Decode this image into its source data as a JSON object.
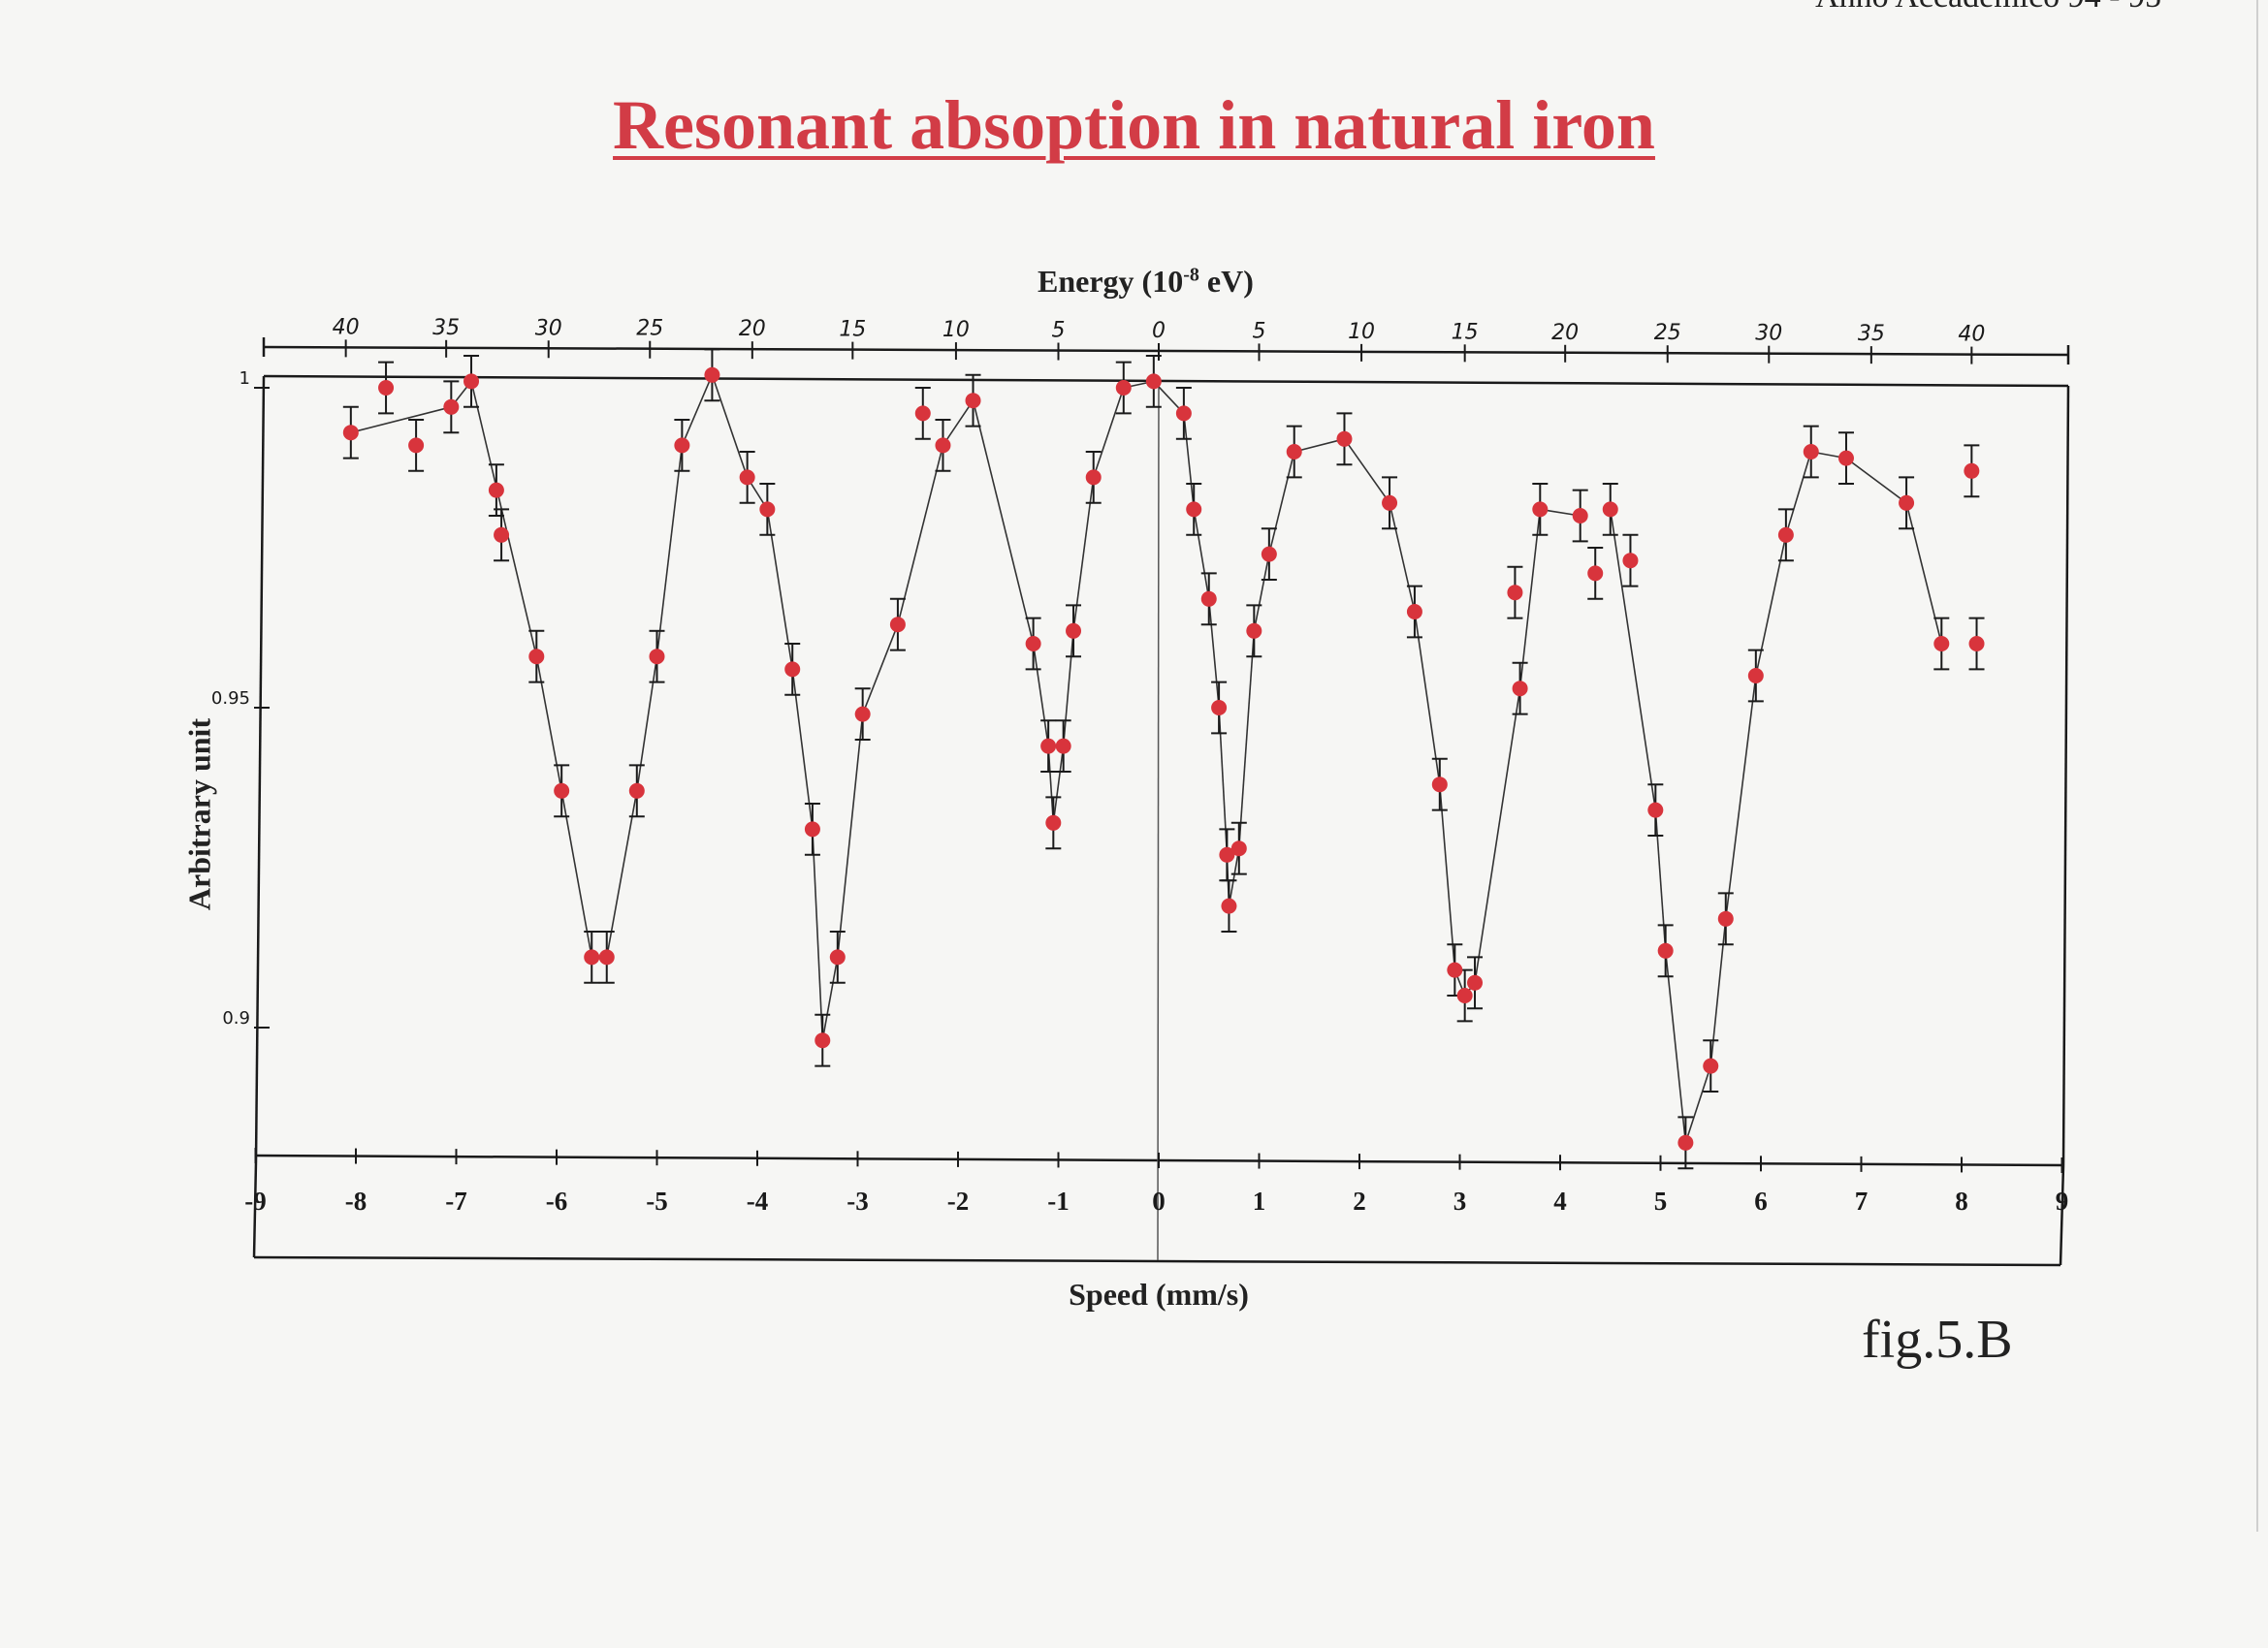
{
  "header": {
    "title": "Resonant absoption in natural iron",
    "corner_fragment": "Anno Accademico 94 - 95",
    "figure_label": "fig.5.B"
  },
  "colors": {
    "title": "#d23c46",
    "points": "#d8343c",
    "ink": "#1a1a1a",
    "background": "#f6f6f4"
  },
  "chart_data": {
    "type": "scatter",
    "title": "Resonant absoption in natural iron",
    "xlabel": "Speed (mm/s)",
    "ylabel": "Arbitrary unit",
    "top_xlabel_text": "Energy (10",
    "top_xlabel_sup": "-8",
    "top_xlabel_tail": " eV)",
    "xlim": [
      -9,
      9
    ],
    "ylim": [
      0.88,
      1.0
    ],
    "x_ticks": [
      -9,
      -8,
      -7,
      -6,
      -5,
      -4,
      -3,
      -2,
      -1,
      0,
      1,
      2,
      3,
      4,
      5,
      6,
      7,
      8,
      9
    ],
    "y_ticks": [
      {
        "value": 1.0,
        "label": "1"
      },
      {
        "value": 0.95,
        "label": "0.95"
      },
      {
        "value": 0.9,
        "label": "0.9"
      }
    ],
    "top_ticks": [
      {
        "x": -8.1,
        "label": "40"
      },
      {
        "x": -7.1,
        "label": "35"
      },
      {
        "x": -6.08,
        "label": "30"
      },
      {
        "x": -5.07,
        "label": "25"
      },
      {
        "x": -4.05,
        "label": "20"
      },
      {
        "x": -3.05,
        "label": "15"
      },
      {
        "x": -2.02,
        "label": "10"
      },
      {
        "x": -1.0,
        "label": "5"
      },
      {
        "x": 0.0,
        "label": "0"
      },
      {
        "x": 1.0,
        "label": "5"
      },
      {
        "x": 2.02,
        "label": "10"
      },
      {
        "x": 3.05,
        "label": "15"
      },
      {
        "x": 4.05,
        "label": "20"
      },
      {
        "x": 5.07,
        "label": "25"
      },
      {
        "x": 6.08,
        "label": "30"
      },
      {
        "x": 7.1,
        "label": "35"
      },
      {
        "x": 8.1,
        "label": "40"
      }
    ],
    "error_bar": 0.004,
    "grid": false,
    "points": [
      {
        "x": -8.05,
        "y": 0.993
      },
      {
        "x": -7.7,
        "y": 1.0
      },
      {
        "x": -7.4,
        "y": 0.991
      },
      {
        "x": -7.05,
        "y": 0.997
      },
      {
        "x": -6.85,
        "y": 1.001
      },
      {
        "x": -6.6,
        "y": 0.984
      },
      {
        "x": -6.55,
        "y": 0.977
      },
      {
        "x": -6.2,
        "y": 0.958
      },
      {
        "x": -5.95,
        "y": 0.937
      },
      {
        "x": -5.65,
        "y": 0.911
      },
      {
        "x": -5.5,
        "y": 0.911
      },
      {
        "x": -5.2,
        "y": 0.937
      },
      {
        "x": -5.0,
        "y": 0.958
      },
      {
        "x": -4.75,
        "y": 0.991
      },
      {
        "x": -4.45,
        "y": 1.002
      },
      {
        "x": -4.1,
        "y": 0.986
      },
      {
        "x": -3.9,
        "y": 0.981
      },
      {
        "x": -3.65,
        "y": 0.956
      },
      {
        "x": -3.45,
        "y": 0.931
      },
      {
        "x": -3.35,
        "y": 0.898
      },
      {
        "x": -3.2,
        "y": 0.911
      },
      {
        "x": -2.95,
        "y": 0.949
      },
      {
        "x": -2.6,
        "y": 0.963
      },
      {
        "x": -2.35,
        "y": 0.996
      },
      {
        "x": -2.15,
        "y": 0.991
      },
      {
        "x": -1.85,
        "y": 0.998
      },
      {
        "x": -1.25,
        "y": 0.96
      },
      {
        "x": -1.1,
        "y": 0.944
      },
      {
        "x": -1.05,
        "y": 0.932
      },
      {
        "x": -0.95,
        "y": 0.944
      },
      {
        "x": -0.85,
        "y": 0.962
      },
      {
        "x": -0.65,
        "y": 0.986
      },
      {
        "x": -0.35,
        "y": 1.0
      },
      {
        "x": -0.05,
        "y": 1.001
      },
      {
        "x": 0.25,
        "y": 0.996
      },
      {
        "x": 0.35,
        "y": 0.981
      },
      {
        "x": 0.5,
        "y": 0.967
      },
      {
        "x": 0.6,
        "y": 0.95
      },
      {
        "x": 0.68,
        "y": 0.927
      },
      {
        "x": 0.7,
        "y": 0.919
      },
      {
        "x": 0.8,
        "y": 0.928
      },
      {
        "x": 0.95,
        "y": 0.962
      },
      {
        "x": 1.1,
        "y": 0.974
      },
      {
        "x": 1.35,
        "y": 0.99
      },
      {
        "x": 1.85,
        "y": 0.992
      },
      {
        "x": 2.3,
        "y": 0.982
      },
      {
        "x": 2.55,
        "y": 0.965
      },
      {
        "x": 2.8,
        "y": 0.938
      },
      {
        "x": 2.95,
        "y": 0.909
      },
      {
        "x": 3.05,
        "y": 0.905
      },
      {
        "x": 3.15,
        "y": 0.907
      },
      {
        "x": 3.55,
        "y": 0.968
      },
      {
        "x": 3.6,
        "y": 0.953
      },
      {
        "x": 3.8,
        "y": 0.981
      },
      {
        "x": 4.2,
        "y": 0.98
      },
      {
        "x": 4.35,
        "y": 0.971
      },
      {
        "x": 4.5,
        "y": 0.981
      },
      {
        "x": 4.7,
        "y": 0.973
      },
      {
        "x": 4.95,
        "y": 0.934
      },
      {
        "x": 5.05,
        "y": 0.912
      },
      {
        "x": 5.25,
        "y": 0.882
      },
      {
        "x": 5.5,
        "y": 0.894
      },
      {
        "x": 5.65,
        "y": 0.917
      },
      {
        "x": 5.95,
        "y": 0.955
      },
      {
        "x": 6.25,
        "y": 0.977
      },
      {
        "x": 6.5,
        "y": 0.99
      },
      {
        "x": 6.85,
        "y": 0.989
      },
      {
        "x": 7.45,
        "y": 0.982
      },
      {
        "x": 7.8,
        "y": 0.96
      },
      {
        "x": 8.15,
        "y": 0.96
      },
      {
        "x": 8.1,
        "y": 0.987
      }
    ],
    "connected_segments": [
      [
        0,
        3
      ],
      [
        3,
        4
      ],
      [
        4,
        7
      ],
      [
        7,
        8
      ],
      [
        8,
        9
      ],
      [
        9,
        10
      ],
      [
        10,
        11
      ],
      [
        11,
        12
      ],
      [
        12,
        13
      ],
      [
        13,
        14
      ],
      [
        14,
        15
      ],
      [
        15,
        16
      ],
      [
        16,
        17
      ],
      [
        17,
        18
      ],
      [
        18,
        19
      ],
      [
        19,
        20
      ],
      [
        20,
        21
      ],
      [
        21,
        22
      ],
      [
        22,
        24
      ],
      [
        24,
        25
      ],
      [
        25,
        26
      ],
      [
        26,
        27
      ],
      [
        27,
        28
      ],
      [
        28,
        29
      ],
      [
        29,
        30
      ],
      [
        30,
        31
      ],
      [
        31,
        32
      ],
      [
        32,
        33
      ],
      [
        33,
        34
      ],
      [
        34,
        35
      ],
      [
        35,
        36
      ],
      [
        36,
        37
      ],
      [
        37,
        38
      ],
      [
        38,
        39
      ],
      [
        39,
        40
      ],
      [
        40,
        41
      ],
      [
        41,
        42
      ],
      [
        42,
        43
      ],
      [
        43,
        44
      ],
      [
        44,
        45
      ],
      [
        45,
        46
      ],
      [
        46,
        47
      ],
      [
        47,
        48
      ],
      [
        48,
        49
      ],
      [
        49,
        50
      ],
      [
        50,
        52
      ],
      [
        52,
        53
      ],
      [
        53,
        54
      ],
      [
        56,
        58
      ],
      [
        58,
        59
      ],
      [
        59,
        60
      ],
      [
        60,
        61
      ],
      [
        61,
        62
      ],
      [
        62,
        63
      ],
      [
        63,
        64
      ],
      [
        64,
        65
      ],
      [
        65,
        66
      ],
      [
        66,
        67
      ],
      [
        67,
        68
      ]
    ]
  }
}
